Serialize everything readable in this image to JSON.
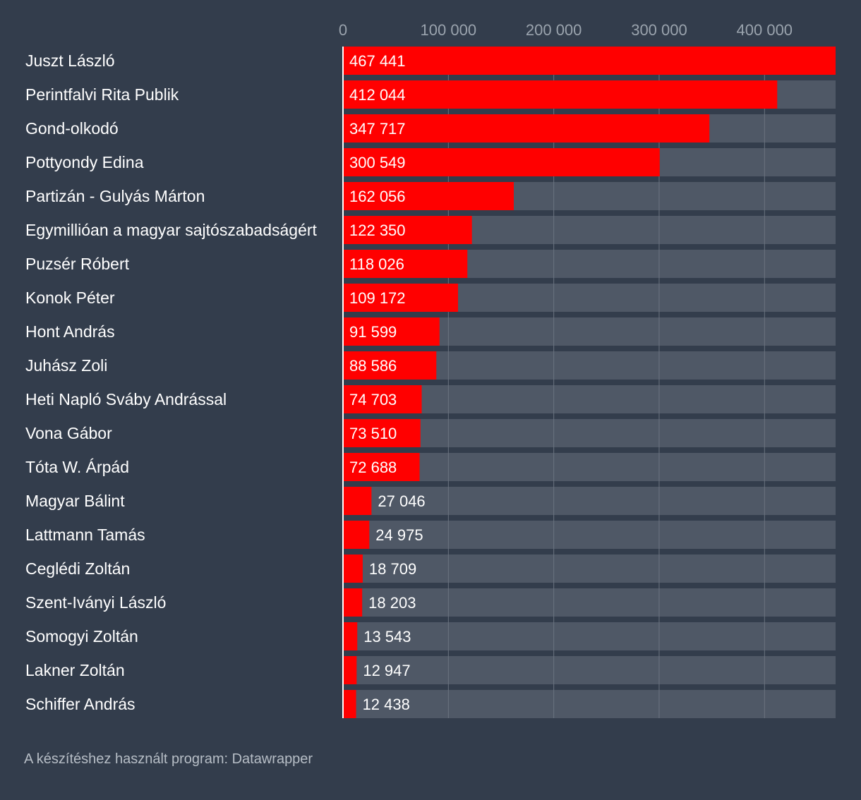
{
  "footer": "A készítéshez használt program: Datawrapper",
  "colors": {
    "background": "#333d4c",
    "bar": "#ff0000",
    "track": "#4f5866",
    "gridline": "#6b7380",
    "text": "#ffffff",
    "muted": "#b7bec6"
  },
  "chart_data": {
    "type": "bar",
    "orientation": "horizontal",
    "title": "",
    "xlabel": "",
    "ylabel": "",
    "xlim": [
      0,
      467441
    ],
    "ticks": [
      0,
      100000,
      200000,
      300000,
      400000
    ],
    "tick_labels": [
      "0",
      "100 000",
      "200 000",
      "300 000",
      "400 000"
    ],
    "grid": true,
    "categories": [
      "Juszt László",
      "Perintfalvi Rita Publik",
      "Gond-olkodó",
      "Pottyondy Edina",
      "Partizán - Gulyás Márton",
      "Egymillióan a magyar sajtószabadságért",
      "Puzsér Róbert",
      "Konok Péter",
      "Hont András",
      "Juhász Zoli",
      "Heti Napló Sváby Andrással",
      "Vona Gábor",
      "Tóta W. Árpád",
      "Magyar Bálint",
      "Lattmann Tamás",
      "Ceglédi Zoltán",
      "Szent-Iványi László",
      "Somogyi Zoltán",
      "Lakner Zoltán",
      "Schiffer András"
    ],
    "values": [
      467441,
      412044,
      347717,
      300549,
      162056,
      122350,
      118026,
      109172,
      91599,
      88586,
      74703,
      73510,
      72688,
      27046,
      24975,
      18709,
      18203,
      13543,
      12947,
      12438
    ],
    "value_labels": [
      "467 441",
      "412 044",
      "347 717",
      "300 549",
      "162 056",
      "122 350",
      "118 026",
      "109 172",
      "91 599",
      "88 586",
      "74 703",
      "73 510",
      "72 688",
      "27 046",
      "24 975",
      "18 709",
      "18 203",
      "13 543",
      "12 947",
      "12 438"
    ]
  }
}
